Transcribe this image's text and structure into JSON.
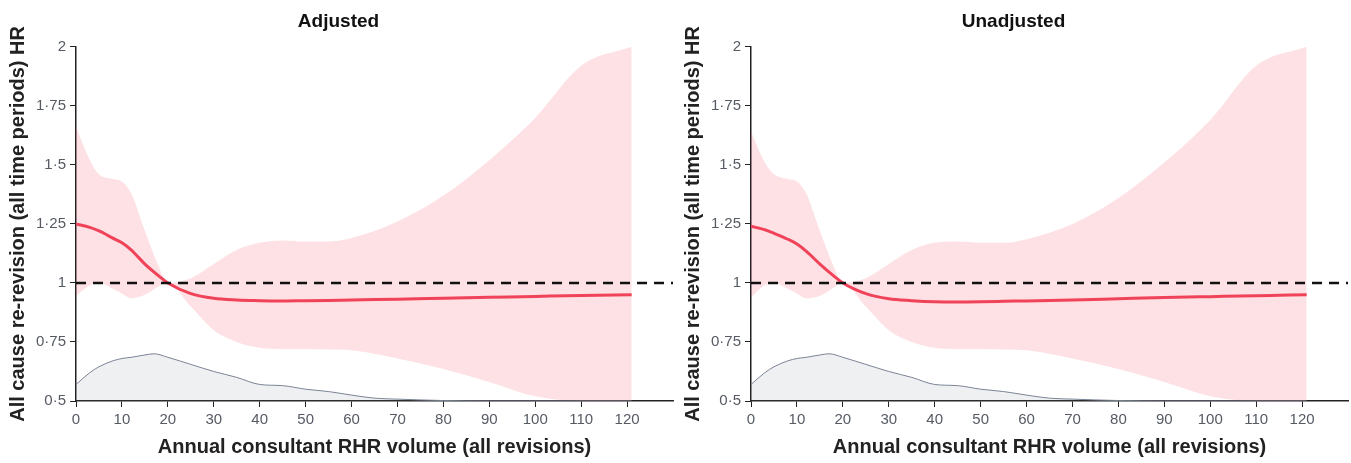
{
  "chart_data": [
    {
      "type": "line",
      "title": "Adjusted",
      "xlabel": "Annual consultant RHR volume (all revisions)",
      "ylabel": "All cause re-revision (all time periods) HR",
      "xlim": [
        0,
        130
      ],
      "xticks": [
        0,
        10,
        20,
        30,
        40,
        50,
        60,
        70,
        80,
        90,
        100,
        110,
        120
      ],
      "ylim": [
        0.5,
        2
      ],
      "yticks": [
        {
          "value": 0.5,
          "label": "0·5"
        },
        {
          "value": 0.75,
          "label": "0·75"
        },
        {
          "value": 1,
          "label": "1"
        },
        {
          "value": 1.25,
          "label": "1·25"
        },
        {
          "value": 1.5,
          "label": "1·5"
        },
        {
          "value": 1.75,
          "label": "1·75"
        },
        {
          "value": 2,
          "label": "2"
        }
      ],
      "grid": false,
      "legend": false,
      "marker": "none",
      "ref_lines": [
        {
          "axis": "y",
          "value": 1,
          "color": "#111111",
          "line_style": "dashed"
        }
      ],
      "series": [
        {
          "color": "#f0435a",
          "x": [
            0,
            3,
            5,
            8,
            10,
            12,
            15,
            18,
            20,
            25,
            30,
            35,
            40,
            45,
            50,
            55,
            60,
            70,
            80,
            90,
            100,
            110,
            121
          ],
          "values": [
            1.25,
            1.235,
            1.22,
            1.19,
            1.17,
            1.14,
            1.08,
            1.03,
            1.0,
            0.955,
            0.935,
            0.928,
            0.925,
            0.924,
            0.925,
            0.926,
            0.928,
            0.931,
            0.935,
            0.939,
            0.943,
            0.947,
            0.95
          ],
          "lower": [
            0.945,
            0.99,
            1.0,
            0.975,
            0.955,
            0.935,
            0.95,
            0.985,
            1.0,
            0.9,
            0.8,
            0.75,
            0.725,
            0.72,
            0.72,
            0.718,
            0.715,
            0.68,
            0.635,
            0.58,
            0.52,
            0.5,
            0.5
          ],
          "upper": [
            1.66,
            1.52,
            1.46,
            1.44,
            1.43,
            1.38,
            1.22,
            1.07,
            1.0,
            1.02,
            1.08,
            1.14,
            1.17,
            1.18,
            1.175,
            1.175,
            1.19,
            1.26,
            1.37,
            1.52,
            1.7,
            1.92,
            2
          ]
        },
        {
          "type": "area",
          "color": "#7b8496",
          "x": [
            0,
            3,
            5,
            8,
            10,
            12,
            15,
            17,
            20,
            25,
            30,
            35,
            40,
            45,
            50,
            55,
            60,
            65,
            70,
            80,
            90,
            121
          ],
          "values": [
            0.57,
            0.62,
            0.645,
            0.67,
            0.68,
            0.685,
            0.695,
            0.7,
            0.685,
            0.655,
            0.625,
            0.6,
            0.57,
            0.565,
            0.55,
            0.54,
            0.525,
            0.512,
            0.508,
            0.502,
            0.5,
            0.5
          ]
        }
      ]
    },
    {
      "type": "line",
      "title": "Unadjusted",
      "xlabel": "Annual consultant RHR volume (all revisions)",
      "ylabel": "All cause re-revision (all time periods) HR",
      "xlim": [
        0,
        130
      ],
      "xticks": [
        0,
        10,
        20,
        30,
        40,
        50,
        60,
        70,
        80,
        90,
        100,
        110,
        120
      ],
      "ylim": [
        0.5,
        2
      ],
      "yticks": [
        {
          "value": 0.5,
          "label": "0·5"
        },
        {
          "value": 0.75,
          "label": "0·75"
        },
        {
          "value": 1,
          "label": "1"
        },
        {
          "value": 1.25,
          "label": "1·25"
        },
        {
          "value": 1.5,
          "label": "1·5"
        },
        {
          "value": 1.75,
          "label": "1·75"
        },
        {
          "value": 2,
          "label": "2"
        }
      ],
      "grid": false,
      "legend": false,
      "marker": "none",
      "ref_lines": [
        {
          "axis": "y",
          "value": 1,
          "color": "#111111",
          "line_style": "dashed"
        }
      ],
      "series": [
        {
          "color": "#f0435a",
          "x": [
            0,
            3,
            5,
            8,
            10,
            12,
            15,
            18,
            20,
            25,
            30,
            35,
            40,
            45,
            50,
            55,
            60,
            70,
            80,
            90,
            100,
            110,
            121
          ],
          "values": [
            1.24,
            1.225,
            1.21,
            1.185,
            1.165,
            1.135,
            1.08,
            1.03,
            1.0,
            0.955,
            0.933,
            0.925,
            0.92,
            0.919,
            0.92,
            0.922,
            0.924,
            0.928,
            0.933,
            0.938,
            0.942,
            0.946,
            0.95
          ],
          "lower": [
            0.94,
            0.99,
            1.0,
            0.975,
            0.955,
            0.935,
            0.945,
            0.98,
            1.0,
            0.9,
            0.8,
            0.75,
            0.725,
            0.72,
            0.72,
            0.718,
            0.715,
            0.68,
            0.635,
            0.58,
            0.52,
            0.5,
            0.5
          ],
          "upper": [
            1.64,
            1.51,
            1.46,
            1.44,
            1.43,
            1.38,
            1.22,
            1.07,
            1.0,
            1.02,
            1.08,
            1.14,
            1.17,
            1.175,
            1.17,
            1.17,
            1.185,
            1.25,
            1.36,
            1.51,
            1.69,
            1.92,
            2
          ]
        },
        {
          "type": "area",
          "color": "#7b8496",
          "x": [
            0,
            3,
            5,
            8,
            10,
            12,
            15,
            17,
            20,
            25,
            30,
            35,
            40,
            45,
            50,
            55,
            60,
            65,
            70,
            80,
            90,
            121
          ],
          "values": [
            0.57,
            0.62,
            0.645,
            0.67,
            0.68,
            0.685,
            0.695,
            0.7,
            0.685,
            0.655,
            0.625,
            0.6,
            0.57,
            0.565,
            0.55,
            0.54,
            0.525,
            0.512,
            0.508,
            0.502,
            0.5,
            0.5
          ]
        }
      ]
    }
  ]
}
